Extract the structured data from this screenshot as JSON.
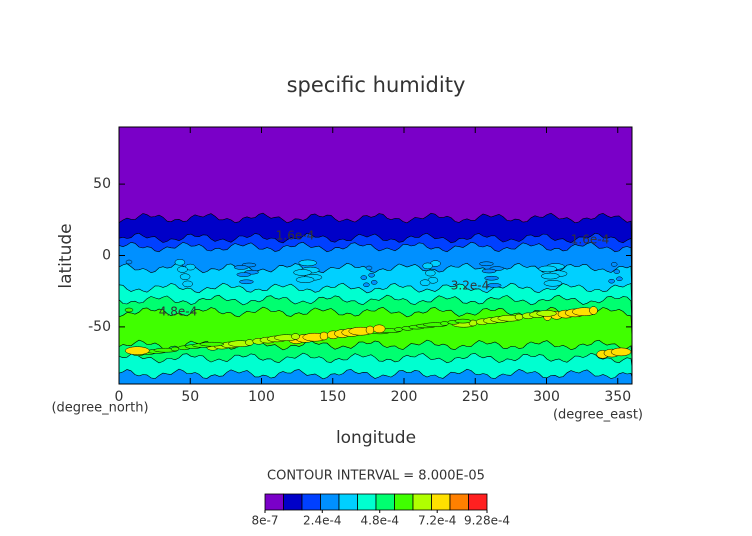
{
  "chart_data": {
    "type": "contour",
    "title": "specific humidity",
    "x_label": "longitude",
    "y_label": "latitude",
    "x_units": "(degree_east)",
    "y_units": "(degree_north)",
    "xlim": [
      0,
      360
    ],
    "ylim": [
      -90,
      90
    ],
    "xticks": [
      0,
      50,
      100,
      150,
      200,
      250,
      300,
      350
    ],
    "yticks": [
      -50,
      0,
      50
    ],
    "contour_labels": [
      "1.6e-4",
      "3.2e-4",
      "4.8e-4",
      "1.6e-4"
    ],
    "interval_text": "CONTOUR INTERVAL = 8.000E-05",
    "colorbar": {
      "levels": [
        8e-07,
        8e-05,
        0.00016,
        0.00024,
        0.00032,
        0.0004,
        0.00048,
        0.00056,
        0.00064,
        0.00072,
        0.0008,
        0.00088,
        0.000928
      ],
      "colors": [
        "#7a00c8",
        "#0000c8",
        "#0040ff",
        "#0090ff",
        "#00d0ff",
        "#00ffd0",
        "#00ff70",
        "#40ff00",
        "#b0ff00",
        "#ffe000",
        "#ff8000",
        "#ff2020"
      ],
      "ticks": [
        {
          "value": 8e-07,
          "label": "8e-7"
        },
        {
          "value": 0.00024,
          "label": "2.4e-4"
        },
        {
          "value": 0.00048,
          "label": "4.8e-4"
        },
        {
          "value": 0.00072,
          "label": "7.2e-4"
        },
        {
          "value": 0.000928,
          "label": "9.28e-4"
        }
      ]
    }
  }
}
